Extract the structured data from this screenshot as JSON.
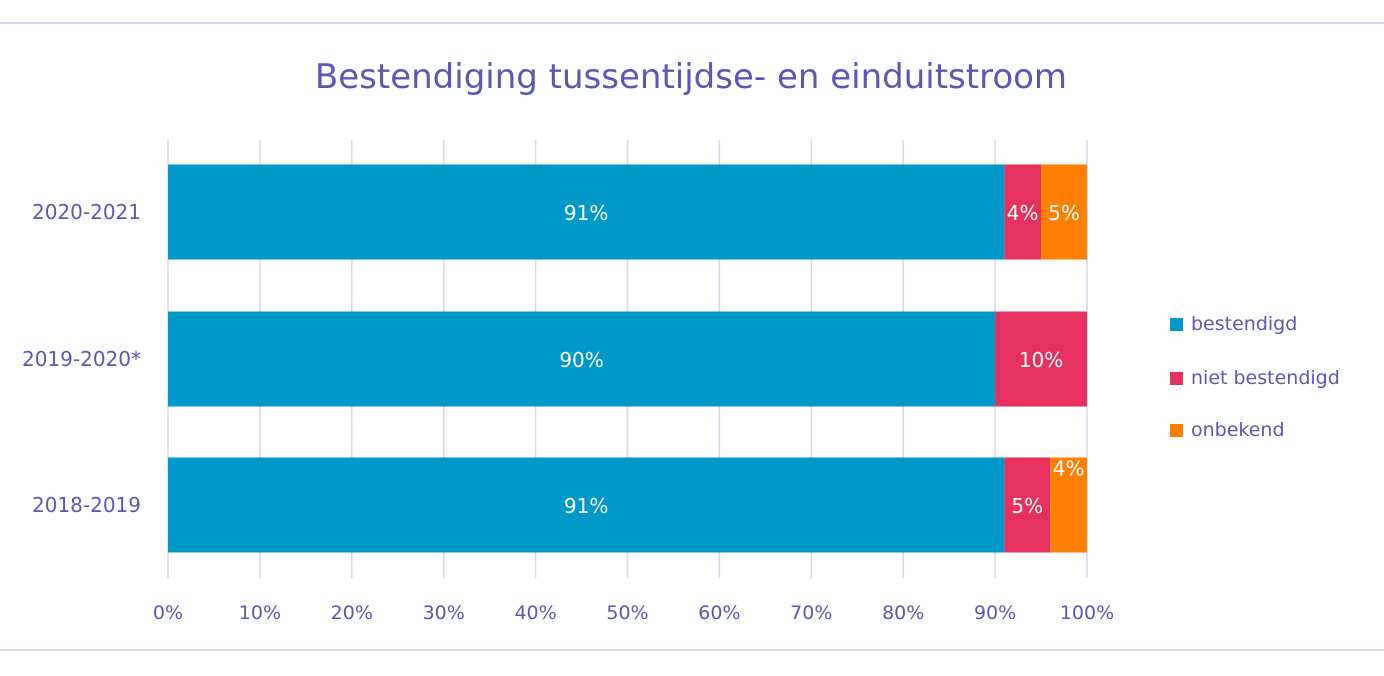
{
  "chart_data": {
    "type": "bar",
    "orientation": "horizontal",
    "stacked": true,
    "title": "Bestendiging tussentijdse- en einduitstroom",
    "xlabel": "",
    "ylabel": "",
    "xlim": [
      0,
      100
    ],
    "x_ticks": [
      "0%",
      "10%",
      "20%",
      "30%",
      "40%",
      "50%",
      "60%",
      "70%",
      "80%",
      "90%",
      "100%"
    ],
    "grid": true,
    "legend_position": "right",
    "categories": [
      "2020-2021",
      "2019-2020*",
      "2018-2019"
    ],
    "series": [
      {
        "name": "bestendigd",
        "color": "#0098c9",
        "values": [
          91,
          90,
          91
        ],
        "labels": [
          "91%",
          "90%",
          "91%"
        ]
      },
      {
        "name": "niet bestendigd",
        "color": "#e6305f",
        "values": [
          4,
          10,
          5
        ],
        "labels": [
          "4%",
          "10%",
          "5%"
        ]
      },
      {
        "name": "onbekend",
        "color": "#ff7f00",
        "values": [
          5,
          0,
          4
        ],
        "labels": [
          "5%",
          "",
          "4%"
        ]
      }
    ]
  }
}
